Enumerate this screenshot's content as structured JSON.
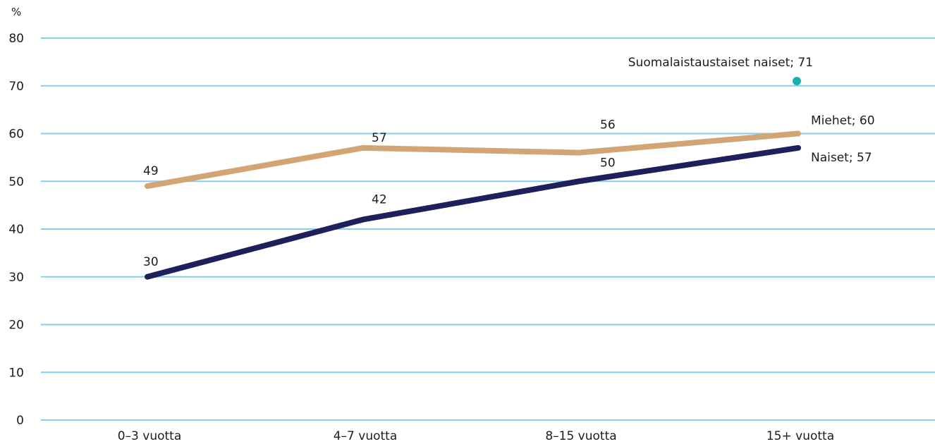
{
  "chart_data": {
    "type": "line",
    "ylabel": "%",
    "ylim": [
      0,
      80
    ],
    "yticks": [
      0,
      10,
      20,
      30,
      40,
      50,
      60,
      70,
      80
    ],
    "categories": [
      "0–3 vuotta",
      "4–7 vuotta",
      "8–15 vuotta",
      "15+ vuotta"
    ],
    "grid": true,
    "series": [
      {
        "name": "Miehet",
        "color": "#D4A574",
        "values": [
          49,
          57,
          56,
          60
        ],
        "labels": [
          "49",
          "57",
          "56",
          "Miehet; 60"
        ]
      },
      {
        "name": "Naiset",
        "color": "#1F1F5C",
        "values": [
          30,
          42,
          50,
          57
        ],
        "labels": [
          "30",
          "42",
          "50",
          "Naiset; 57"
        ]
      }
    ],
    "points": [
      {
        "name": "Suomalaistaustaiset naiset",
        "category": "15+ vuotta",
        "value": 71,
        "color": "#1AAFB0",
        "label": "Suomalaistaustaiset naiset; 71"
      }
    ],
    "gridColor": "#87CEEB"
  }
}
